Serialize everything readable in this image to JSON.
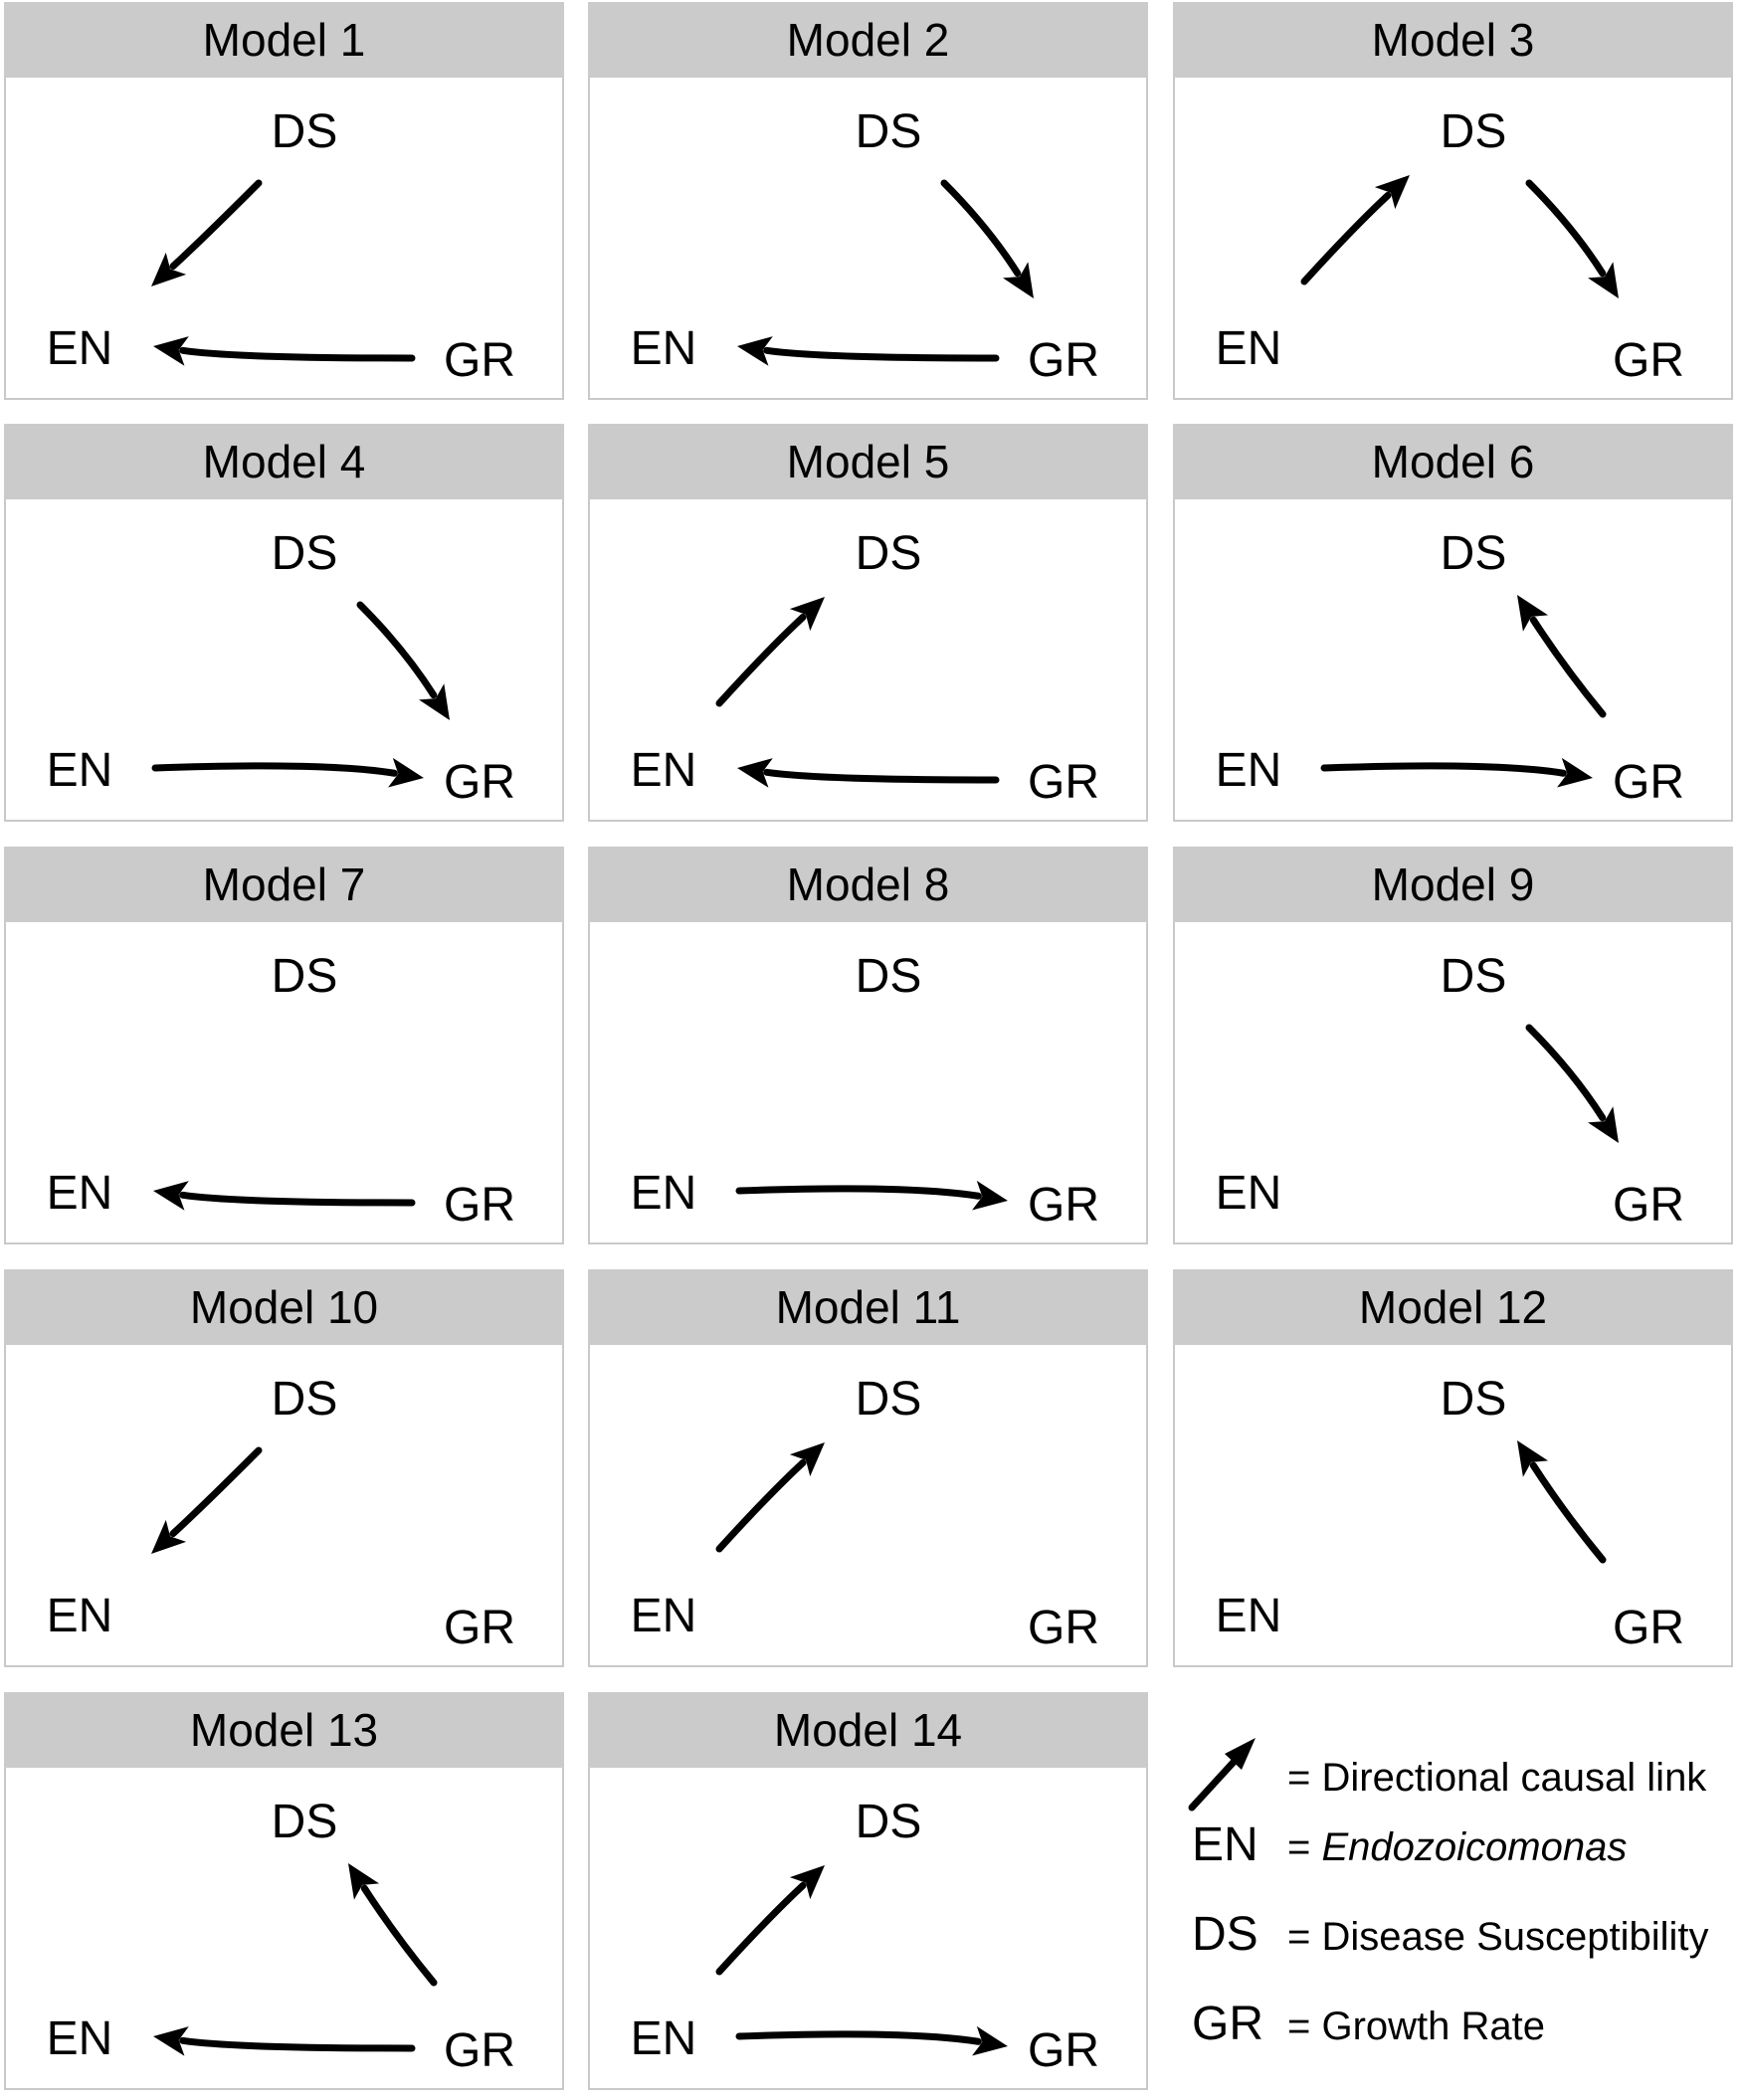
{
  "nodes": {
    "DS": "DS",
    "EN": "EN",
    "GR": "GR"
  },
  "models": [
    {
      "title": "Model 1",
      "links": [
        [
          "DS",
          "EN"
        ],
        [
          "GR",
          "EN"
        ]
      ]
    },
    {
      "title": "Model 2",
      "links": [
        [
          "DS",
          "GR"
        ],
        [
          "GR",
          "EN"
        ]
      ]
    },
    {
      "title": "Model 3",
      "links": [
        [
          "EN",
          "DS"
        ],
        [
          "DS",
          "GR"
        ]
      ]
    },
    {
      "title": "Model 4",
      "links": [
        [
          "DS",
          "GR"
        ],
        [
          "EN",
          "GR"
        ]
      ]
    },
    {
      "title": "Model 5",
      "links": [
        [
          "EN",
          "DS"
        ],
        [
          "GR",
          "EN"
        ]
      ]
    },
    {
      "title": "Model 6",
      "links": [
        [
          "GR",
          "DS"
        ],
        [
          "EN",
          "GR"
        ]
      ]
    },
    {
      "title": "Model 7",
      "links": [
        [
          "GR",
          "EN"
        ]
      ]
    },
    {
      "title": "Model 8",
      "links": [
        [
          "EN",
          "GR"
        ]
      ]
    },
    {
      "title": "Model 9",
      "links": [
        [
          "DS",
          "GR"
        ]
      ]
    },
    {
      "title": "Model 10",
      "links": [
        [
          "DS",
          "EN"
        ]
      ]
    },
    {
      "title": "Model 11",
      "links": [
        [
          "EN",
          "DS"
        ]
      ]
    },
    {
      "title": "Model 12",
      "links": [
        [
          "GR",
          "DS"
        ]
      ]
    },
    {
      "title": "Model 13",
      "links": [
        [
          "GR",
          "DS"
        ],
        [
          "GR",
          "EN"
        ]
      ]
    },
    {
      "title": "Model 14",
      "links": [
        [
          "EN",
          "DS"
        ],
        [
          "EN",
          "GR"
        ]
      ]
    }
  ],
  "legend": {
    "arrow_text": "= Directional causal link",
    "rows": [
      {
        "abbr": "EN",
        "text": "= ",
        "italic": "Endozoicomonas"
      },
      {
        "abbr": "DS",
        "text": "= Disease Susceptibility"
      },
      {
        "abbr": "GR",
        "text": "= Growth Rate"
      }
    ]
  }
}
